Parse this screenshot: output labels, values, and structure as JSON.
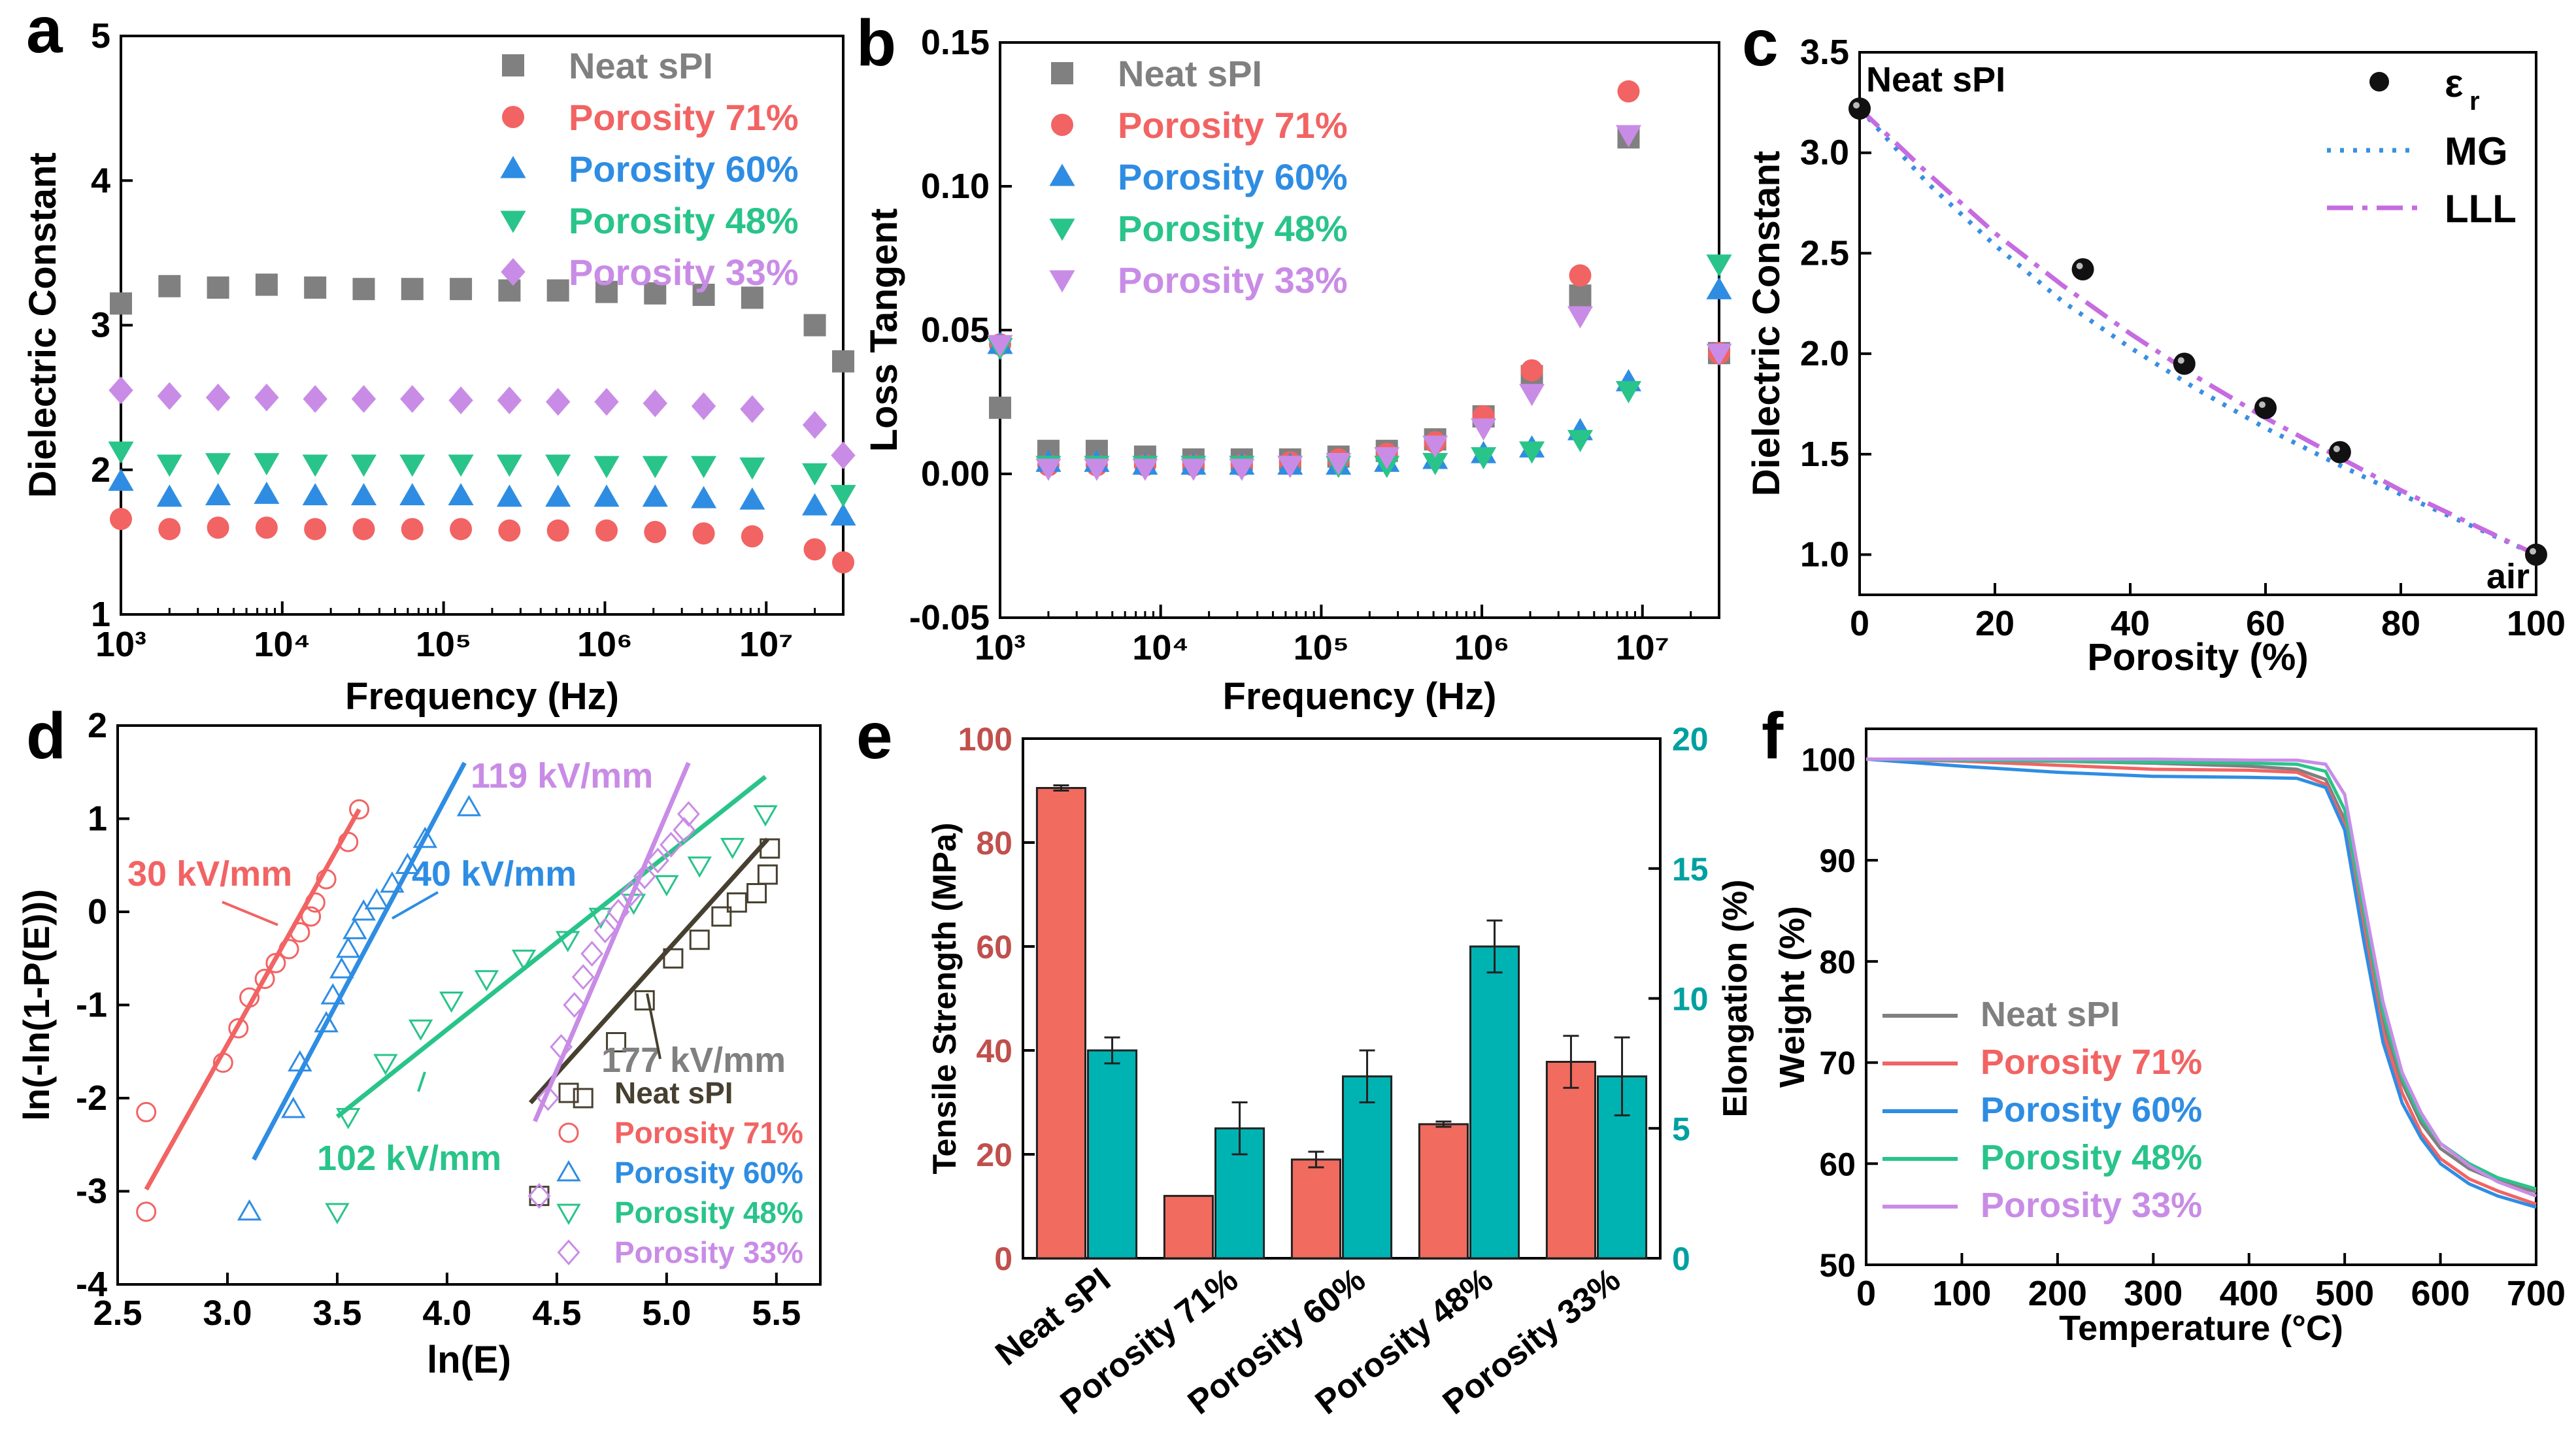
{
  "panel_letters": [
    "a",
    "b",
    "c",
    "d",
    "e",
    "f"
  ],
  "series_colors": {
    "Neat sPI": "#808080",
    "Porosity 71%": "#f26363",
    "Porosity 60%": "#2e8de3",
    "Porosity 48%": "#29c48a",
    "Porosity 33%": "#c98ce6"
  },
  "chart_data": [
    {
      "panel": "a",
      "type": "scatter",
      "xlabel": "Frequency (Hz)",
      "ylabel": "Dielectric Constant",
      "xscale": "log",
      "xlim": [
        1000,
        30000000
      ],
      "ylim": [
        1,
        5
      ],
      "xticks": [
        "10³",
        "10⁴",
        "10⁵",
        "10⁶",
        "10⁷"
      ],
      "yticks": [
        "1",
        "2",
        "3",
        "4",
        "5"
      ],
      "x": [
        1000,
        2000,
        4000,
        8000,
        16000,
        32000,
        64000,
        128000,
        256000,
        512000,
        1024000,
        2048000,
        4096000,
        8192000,
        20000000,
        30000000
      ],
      "series": [
        {
          "name": "Neat sPI",
          "marker": "square",
          "values": [
            3.15,
            3.27,
            3.26,
            3.28,
            3.26,
            3.25,
            3.25,
            3.25,
            3.24,
            3.24,
            3.23,
            3.22,
            3.21,
            3.19,
            3.0,
            2.75
          ]
        },
        {
          "name": "Porosity 71%",
          "marker": "circle",
          "values": [
            1.66,
            1.59,
            1.6,
            1.6,
            1.59,
            1.59,
            1.59,
            1.59,
            1.58,
            1.58,
            1.58,
            1.57,
            1.56,
            1.54,
            1.45,
            1.36
          ]
        },
        {
          "name": "Porosity 60%",
          "marker": "triangle-up",
          "values": [
            1.92,
            1.81,
            1.82,
            1.83,
            1.82,
            1.82,
            1.82,
            1.82,
            1.81,
            1.81,
            1.81,
            1.81,
            1.8,
            1.79,
            1.75,
            1.68
          ]
        },
        {
          "name": "Porosity 48%",
          "marker": "triangle-down",
          "values": [
            2.13,
            2.04,
            2.05,
            2.05,
            2.04,
            2.04,
            2.04,
            2.04,
            2.04,
            2.04,
            2.03,
            2.03,
            2.03,
            2.02,
            1.98,
            1.83
          ]
        },
        {
          "name": "Porosity 33%",
          "marker": "diamond",
          "values": [
            2.55,
            2.51,
            2.5,
            2.5,
            2.49,
            2.49,
            2.49,
            2.48,
            2.48,
            2.47,
            2.47,
            2.46,
            2.44,
            2.42,
            2.31,
            2.1
          ]
        }
      ],
      "legend_position": "top-right"
    },
    {
      "panel": "b",
      "type": "scatter",
      "xlabel": "Frequency (Hz)",
      "ylabel": "Loss Tangent",
      "xscale": "log",
      "xlim": [
        1000,
        30000000
      ],
      "ylim": [
        -0.05,
        0.15
      ],
      "xticks": [
        "10³",
        "10⁴",
        "10⁵",
        "10⁶",
        "10⁷"
      ],
      "yticks": [
        "-0.05",
        "0.00",
        "0.05",
        "0.10",
        "0.15"
      ],
      "x": [
        1000,
        2000,
        4000,
        8000,
        16000,
        32000,
        64000,
        128000,
        256000,
        512000,
        1024000,
        2048000,
        4096000,
        8192000,
        30000000
      ],
      "series": [
        {
          "name": "Neat sPI",
          "marker": "square",
          "values": [
            0.023,
            0.008,
            0.008,
            0.006,
            0.005,
            0.005,
            0.005,
            0.006,
            0.008,
            0.012,
            0.02,
            0.034,
            0.062,
            0.117,
            0.042
          ]
        },
        {
          "name": "Porosity 71%",
          "marker": "circle",
          "values": [
            0.045,
            0.003,
            0.003,
            0.003,
            0.003,
            0.003,
            0.004,
            0.005,
            0.007,
            0.011,
            0.02,
            0.036,
            0.069,
            0.133,
            0.042
          ]
        },
        {
          "name": "Porosity 60%",
          "marker": "triangle-up",
          "values": [
            0.045,
            0.004,
            0.004,
            0.003,
            0.003,
            0.003,
            0.003,
            0.003,
            0.004,
            0.005,
            0.007,
            0.009,
            0.015,
            0.032,
            0.064
          ]
        },
        {
          "name": "Porosity 48%",
          "marker": "triangle-down",
          "values": [
            0.044,
            0.003,
            0.003,
            0.003,
            0.003,
            0.003,
            0.003,
            0.003,
            0.003,
            0.004,
            0.006,
            0.008,
            0.012,
            0.029,
            0.073
          ]
        },
        {
          "name": "Porosity 33%",
          "marker": "triangle-down",
          "values": [
            0.045,
            0.002,
            0.002,
            0.002,
            0.002,
            0.002,
            0.003,
            0.004,
            0.006,
            0.01,
            0.016,
            0.028,
            0.055,
            0.118,
            0.042
          ]
        }
      ],
      "legend_position": "top-left"
    },
    {
      "panel": "c",
      "type": "scatter",
      "xlabel": "Porosity (%)",
      "ylabel": "Dielectric Constant",
      "xlim": [
        0,
        100
      ],
      "ylim": [
        0.8,
        3.5
      ],
      "xticks": [
        "0",
        "20",
        "40",
        "60",
        "80",
        "100"
      ],
      "yticks": [
        "1.0",
        "1.5",
        "2.0",
        "2.5",
        "3.0",
        "3.5"
      ],
      "points": {
        "name": "εr",
        "x": [
          0,
          33,
          48,
          60,
          71,
          100
        ],
        "y": [
          3.22,
          2.42,
          1.95,
          1.73,
          1.51,
          1.0
        ]
      },
      "curves": [
        {
          "name": "MG",
          "style": "dotted",
          "color": "#3a8fe0",
          "x": [
            0,
            10,
            20,
            30,
            40,
            50,
            60,
            70,
            80,
            90,
            100
          ],
          "y": [
            3.22,
            2.85,
            2.54,
            2.26,
            2.03,
            1.82,
            1.63,
            1.46,
            1.3,
            1.15,
            1.0
          ]
        },
        {
          "name": "LLL",
          "style": "dash-dot",
          "color": "#c66be0",
          "x": [
            0,
            10,
            20,
            30,
            40,
            50,
            60,
            70,
            80,
            90,
            100
          ],
          "y": [
            3.22,
            2.9,
            2.6,
            2.34,
            2.1,
            1.88,
            1.68,
            1.5,
            1.32,
            1.16,
            1.0
          ]
        }
      ],
      "annotations": [
        "Neat sPI",
        "air"
      ],
      "legend_labels": {
        "points": "ε",
        "points_sub": "r",
        "mg": "MG",
        "lll": "LLL"
      },
      "legend_position": "top-right"
    },
    {
      "panel": "d",
      "type": "scatter",
      "xlabel": "ln(E)",
      "ylabel": "ln(-ln(1-P(E)))",
      "xlim": [
        2.5,
        5.7
      ],
      "ylim": [
        -4,
        2
      ],
      "xticks": [
        "2.5",
        "3.0",
        "3.5",
        "4.0",
        "4.5",
        "5.0",
        "5.5"
      ],
      "yticks": [
        "-4",
        "-3",
        "-2",
        "-1",
        "0",
        "1",
        "2"
      ],
      "series": [
        {
          "name": "Neat sPI",
          "marker": "open-square",
          "color": "#474030",
          "x": [
            4.42,
            4.62,
            4.77,
            4.9,
            5.03,
            5.15,
            5.25,
            5.32,
            5.41,
            5.46,
            5.47
          ],
          "y": [
            -3.05,
            -2.0,
            -1.4,
            -0.95,
            -0.5,
            -0.3,
            -0.05,
            0.1,
            0.2,
            0.4,
            0.68
          ],
          "fit": [
            [
              4.38,
              -2.05
            ],
            [
              5.46,
              0.78
            ]
          ],
          "label": "177 kV/mm"
        },
        {
          "name": "Porosity 71%",
          "marker": "open-circle",
          "color": "#f26363",
          "x": [
            2.63,
            2.63,
            2.98,
            3.05,
            3.1,
            3.17,
            3.22,
            3.28,
            3.33,
            3.38,
            3.4,
            3.45,
            3.55,
            3.6
          ],
          "y": [
            -3.22,
            -2.15,
            -1.62,
            -1.25,
            -0.92,
            -0.72,
            -0.55,
            -0.4,
            -0.22,
            -0.05,
            0.1,
            0.35,
            0.75,
            1.1
          ],
          "fit": [
            [
              2.63,
              -2.98
            ],
            [
              3.6,
              1.1
            ]
          ],
          "label": "30 kV/mm"
        },
        {
          "name": "Porosity 60%",
          "marker": "open-triangle-up",
          "color": "#2e8de3",
          "x": [
            3.1,
            3.3,
            3.33,
            3.45,
            3.48,
            3.52,
            3.55,
            3.58,
            3.62,
            3.68,
            3.75,
            3.82,
            3.9,
            4.1
          ],
          "y": [
            -3.22,
            -2.12,
            -1.62,
            -1.2,
            -0.9,
            -0.62,
            -0.4,
            -0.2,
            0.0,
            0.12,
            0.3,
            0.5,
            0.78,
            1.12
          ],
          "fit": [
            [
              3.12,
              -2.66
            ],
            [
              4.08,
              1.6
            ]
          ],
          "label": "40 kV/mm"
        },
        {
          "name": "Porosity 48%",
          "marker": "open-triangle-down",
          "color": "#29c48a",
          "x": [
            3.5,
            3.55,
            3.72,
            3.88,
            4.02,
            4.18,
            4.35,
            4.55,
            4.7,
            4.85,
            5.0,
            5.15,
            5.3,
            5.45
          ],
          "y": [
            -3.22,
            -2.2,
            -1.62,
            -1.25,
            -0.95,
            -0.72,
            -0.5,
            -0.3,
            -0.05,
            0.1,
            0.3,
            0.5,
            0.7,
            1.05
          ],
          "fit": [
            [
              3.5,
              -2.2
            ],
            [
              5.45,
              1.45
            ]
          ],
          "label": "102 kV/mm"
        },
        {
          "name": "Porosity 33%",
          "marker": "open-diamond",
          "color": "#c98ce6",
          "x": [
            4.42,
            4.46,
            4.52,
            4.58,
            4.62,
            4.66,
            4.72,
            4.78,
            4.84,
            4.9,
            4.96,
            5.02,
            5.08,
            5.1
          ],
          "y": [
            -3.05,
            -2.0,
            -1.45,
            -1.0,
            -0.7,
            -0.45,
            -0.2,
            0.0,
            0.2,
            0.38,
            0.55,
            0.72,
            0.88,
            1.05
          ],
          "fit": [
            [
              4.4,
              -2.25
            ],
            [
              5.1,
              1.6
            ]
          ],
          "label": "119 kV/mm"
        }
      ],
      "legend_position": "bottom-right"
    },
    {
      "panel": "e",
      "type": "bar",
      "categories": [
        "Neat sPI",
        "Porosity 71%",
        "Porosity 60%",
        "Porosity 48%",
        "Porosity 33%"
      ],
      "ylabel": "Tensile Strength (MPa)",
      "y2label": "Elongation (%)",
      "ylim": [
        0,
        100
      ],
      "y2lim": [
        0,
        20
      ],
      "yticks": [
        "0",
        "20",
        "40",
        "60",
        "80",
        "100"
      ],
      "y2ticks": [
        "0",
        "5",
        "10",
        "15",
        "20"
      ],
      "series": [
        {
          "name": "Tensile Strength (MPa)",
          "axis": "left",
          "color": "#f26b5f",
          "values": [
            90.5,
            12,
            19,
            25.8,
            37.8
          ],
          "errors": [
            0.5,
            0,
            1.5,
            0.5,
            5
          ]
        },
        {
          "name": "Elongation (%)",
          "axis": "right",
          "color": "#00b3b3",
          "values": [
            8,
            5,
            7,
            12,
            7
          ],
          "errors": [
            0.5,
            1,
            1,
            1,
            1.5
          ]
        }
      ],
      "left_axis_color": "#c0504d",
      "right_axis_color": "#00a0a0"
    },
    {
      "panel": "f",
      "type": "line",
      "xlabel": "Temperature (°C)",
      "ylabel": "Weight (%)",
      "xlim": [
        0,
        700
      ],
      "ylim": [
        50,
        103
      ],
      "xticks": [
        "0",
        "100",
        "200",
        "300",
        "400",
        "500",
        "600",
        "700"
      ],
      "yticks": [
        "50",
        "60",
        "70",
        "80",
        "90",
        "100"
      ],
      "x": [
        0,
        100,
        200,
        300,
        400,
        450,
        480,
        500,
        520,
        540,
        560,
        580,
        600,
        630,
        660,
        700
      ],
      "series": [
        {
          "name": "Neat sPI",
          "values": [
            100,
            99.9,
            99.8,
            99.6,
            99.3,
            99.0,
            98.0,
            94.0,
            84.0,
            74.0,
            68.0,
            64.0,
            61.5,
            59.5,
            58.3,
            57.2
          ]
        },
        {
          "name": "Porosity 71%",
          "values": [
            100,
            99.8,
            99.4,
            99.0,
            98.9,
            98.7,
            97.5,
            93.5,
            83.0,
            73.0,
            67.0,
            63.0,
            60.5,
            58.5,
            57.3,
            56.0
          ]
        },
        {
          "name": "Porosity 60%",
          "values": [
            100,
            99.3,
            98.7,
            98.3,
            98.2,
            98.1,
            97.2,
            93.0,
            82.0,
            72.0,
            66.0,
            62.5,
            60.0,
            58.0,
            56.8,
            55.7
          ]
        },
        {
          "name": "Porosity 48%",
          "values": [
            100,
            99.9,
            99.8,
            99.7,
            99.6,
            99.5,
            98.8,
            95.0,
            85.0,
            75.0,
            68.5,
            64.5,
            62.0,
            60.0,
            58.6,
            57.5
          ]
        },
        {
          "name": "Porosity 33%",
          "values": [
            100,
            100,
            100,
            100,
            99.9,
            99.9,
            99.5,
            96.5,
            86.0,
            76.0,
            69.0,
            65.0,
            62.0,
            59.8,
            58.2,
            56.8
          ]
        }
      ],
      "legend_position": "bottom-left"
    }
  ]
}
